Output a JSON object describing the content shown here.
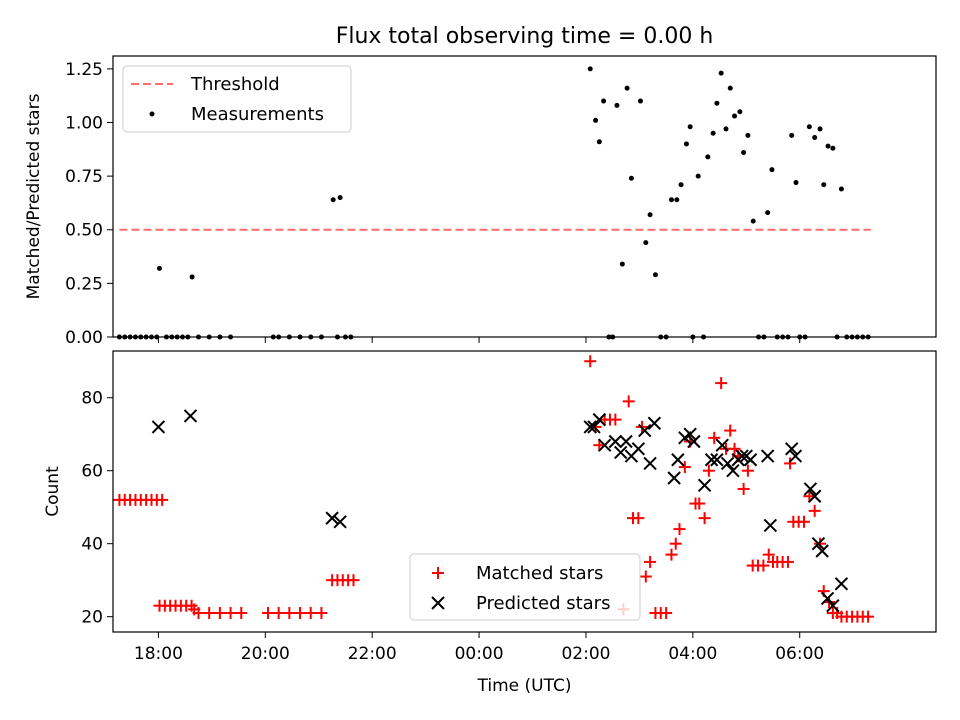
{
  "chart_data": [
    {
      "type": "scatter",
      "title": "Flux total observing time = 0.00 h",
      "xlabel": "",
      "ylabel": "Matched/Predicted stars",
      "xlim": [
        -6.85,
        8.55
      ],
      "ylim": [
        0,
        1.31
      ],
      "yticks": [
        0,
        0.25,
        0.5,
        0.75,
        1.0,
        1.25
      ],
      "ytick_labels": [
        "0.00",
        "0.25",
        "0.50",
        "0.75",
        "1.00",
        "1.25"
      ],
      "grid": false,
      "legend_position": "upper left",
      "legend": [
        "Threshold",
        "Measurements"
      ],
      "threshold": {
        "name": "Threshold",
        "y": 0.5,
        "x_start": -6.73,
        "x_end": 7.33,
        "color": "#ff6f6f",
        "style": "dashed"
      },
      "series": [
        {
          "name": "Measurements",
          "color": "#000000",
          "marker": "dot",
          "points": [
            [
              -6.73,
              0
            ],
            [
              -6.63,
              0
            ],
            [
              -6.53,
              0
            ],
            [
              -6.43,
              0
            ],
            [
              -6.33,
              0
            ],
            [
              -6.23,
              0
            ],
            [
              -6.13,
              0
            ],
            [
              -6.03,
              0
            ],
            [
              -5.98,
              0.32
            ],
            [
              -5.85,
              0
            ],
            [
              -5.75,
              0
            ],
            [
              -5.65,
              0
            ],
            [
              -5.55,
              0
            ],
            [
              -5.45,
              0
            ],
            [
              -5.37,
              0.28
            ],
            [
              -5.25,
              0
            ],
            [
              -5.05,
              0
            ],
            [
              -4.85,
              0
            ],
            [
              -4.65,
              0
            ],
            [
              -3.85,
              0
            ],
            [
              -3.75,
              0
            ],
            [
              -3.55,
              0
            ],
            [
              -3.35,
              0
            ],
            [
              -3.15,
              0
            ],
            [
              -2.95,
              0
            ],
            [
              -2.73,
              0.64
            ],
            [
              -2.65,
              0
            ],
            [
              -2.6,
              0.65
            ],
            [
              -2.5,
              0
            ],
            [
              -2.4,
              0
            ],
            [
              2.08,
              1.25
            ],
            [
              2.18,
              1.01
            ],
            [
              2.25,
              0.91
            ],
            [
              2.33,
              1.1
            ],
            [
              2.43,
              0
            ],
            [
              2.5,
              0
            ],
            [
              2.58,
              1.08
            ],
            [
              2.68,
              0.34
            ],
            [
              2.77,
              1.16
            ],
            [
              2.85,
              0.74
            ],
            [
              3.02,
              1.1
            ],
            [
              3.12,
              0.44
            ],
            [
              3.2,
              0.57
            ],
            [
              3.3,
              0.29
            ],
            [
              3.4,
              0
            ],
            [
              3.5,
              0
            ],
            [
              3.6,
              0.64
            ],
            [
              3.7,
              0.64
            ],
            [
              3.78,
              0.71
            ],
            [
              3.88,
              0.9
            ],
            [
              3.95,
              0.98
            ],
            [
              4.0,
              0
            ],
            [
              4.1,
              0.75
            ],
            [
              4.2,
              0
            ],
            [
              4.28,
              0.84
            ],
            [
              4.38,
              0.95
            ],
            [
              4.45,
              1.09
            ],
            [
              4.53,
              1.23
            ],
            [
              4.62,
              0.97
            ],
            [
              4.7,
              1.16
            ],
            [
              4.78,
              1.03
            ],
            [
              4.88,
              1.05
            ],
            [
              4.95,
              0.86
            ],
            [
              5.03,
              0.94
            ],
            [
              5.13,
              0.54
            ],
            [
              5.23,
              0
            ],
            [
              5.33,
              0
            ],
            [
              5.4,
              0.58
            ],
            [
              5.48,
              0.78
            ],
            [
              5.58,
              0
            ],
            [
              5.68,
              0
            ],
            [
              5.78,
              0
            ],
            [
              5.85,
              0.94
            ],
            [
              5.93,
              0.72
            ],
            [
              6.0,
              0
            ],
            [
              6.1,
              0
            ],
            [
              6.18,
              0.98
            ],
            [
              6.28,
              0.93
            ],
            [
              6.38,
              0.97
            ],
            [
              6.45,
              0.71
            ],
            [
              6.53,
              0.89
            ],
            [
              6.62,
              0.88
            ],
            [
              6.7,
              0
            ],
            [
              6.78,
              0.69
            ],
            [
              6.88,
              0
            ],
            [
              6.98,
              0
            ],
            [
              7.08,
              0
            ],
            [
              7.18,
              0
            ],
            [
              7.28,
              0
            ]
          ]
        }
      ]
    },
    {
      "type": "scatter",
      "title": "",
      "xlabel": "Time (UTC)",
      "ylabel": "Count",
      "xlim": [
        -6.85,
        8.55
      ],
      "ylim": [
        15.8,
        92.8
      ],
      "yticks": [
        20,
        40,
        60,
        80
      ],
      "ytick_labels": [
        "20",
        "40",
        "60",
        "80"
      ],
      "xticks": [
        -6,
        -4,
        -2,
        0,
        2,
        4,
        6
      ],
      "xtick_labels": [
        "18:00",
        "20:00",
        "22:00",
        "00:00",
        "02:00",
        "04:00",
        "06:00"
      ],
      "grid": false,
      "legend_position": "lower center",
      "legend": [
        "Matched stars",
        "Predicted stars"
      ],
      "series": [
        {
          "name": "Matched stars",
          "color": "#ff0000",
          "marker": "plus",
          "points": [
            [
              -6.73,
              52
            ],
            [
              -6.63,
              52
            ],
            [
              -6.53,
              52
            ],
            [
              -6.43,
              52
            ],
            [
              -6.33,
              52
            ],
            [
              -6.23,
              52
            ],
            [
              -6.13,
              52
            ],
            [
              -6.03,
              52
            ],
            [
              -5.93,
              52
            ],
            [
              -5.98,
              23
            ],
            [
              -5.88,
              23
            ],
            [
              -5.78,
              23
            ],
            [
              -5.68,
              23
            ],
            [
              -5.58,
              23
            ],
            [
              -5.48,
              23
            ],
            [
              -5.38,
              23
            ],
            [
              -5.33,
              22
            ],
            [
              -5.25,
              21
            ],
            [
              -5.05,
              21
            ],
            [
              -4.85,
              21
            ],
            [
              -4.65,
              21
            ],
            [
              -4.45,
              21
            ],
            [
              -3.95,
              21
            ],
            [
              -3.75,
              21
            ],
            [
              -3.55,
              21
            ],
            [
              -3.35,
              21
            ],
            [
              -3.15,
              21
            ],
            [
              -2.95,
              21
            ],
            [
              -2.75,
              30
            ],
            [
              -2.65,
              30
            ],
            [
              -2.55,
              30
            ],
            [
              -2.45,
              30
            ],
            [
              -2.35,
              30
            ],
            [
              2.08,
              90
            ],
            [
              2.18,
              72
            ],
            [
              2.25,
              67
            ],
            [
              2.35,
              74
            ],
            [
              2.45,
              74
            ],
            [
              2.55,
              74
            ],
            [
              2.7,
              22
            ],
            [
              2.8,
              79
            ],
            [
              2.88,
              47
            ],
            [
              2.98,
              47
            ],
            [
              3.05,
              72
            ],
            [
              3.12,
              31
            ],
            [
              3.2,
              35
            ],
            [
              3.3,
              21
            ],
            [
              3.4,
              21
            ],
            [
              3.5,
              21
            ],
            [
              3.6,
              37
            ],
            [
              3.68,
              40
            ],
            [
              3.75,
              44
            ],
            [
              3.85,
              61
            ],
            [
              3.95,
              68
            ],
            [
              4.05,
              51
            ],
            [
              4.12,
              51
            ],
            [
              4.22,
              47
            ],
            [
              4.3,
              60
            ],
            [
              4.4,
              69
            ],
            [
              4.53,
              84
            ],
            [
              4.62,
              66
            ],
            [
              4.7,
              71
            ],
            [
              4.78,
              66
            ],
            [
              4.85,
              64
            ],
            [
              4.95,
              55
            ],
            [
              5.03,
              60
            ],
            [
              5.12,
              34
            ],
            [
              5.22,
              34
            ],
            [
              5.32,
              34
            ],
            [
              5.42,
              37
            ],
            [
              5.5,
              35
            ],
            [
              5.58,
              35
            ],
            [
              5.68,
              35
            ],
            [
              5.78,
              35
            ],
            [
              5.82,
              62
            ],
            [
              5.88,
              46
            ],
            [
              5.98,
              46
            ],
            [
              6.08,
              46
            ],
            [
              6.18,
              53
            ],
            [
              6.28,
              49
            ],
            [
              6.38,
              40
            ],
            [
              6.45,
              27
            ],
            [
              6.55,
              24
            ],
            [
              6.62,
              21
            ],
            [
              6.7,
              21
            ],
            [
              6.78,
              20
            ],
            [
              6.88,
              20
            ],
            [
              6.98,
              20
            ],
            [
              7.08,
              20
            ],
            [
              7.18,
              20
            ],
            [
              7.28,
              20
            ]
          ]
        },
        {
          "name": "Predicted stars",
          "color": "#000000",
          "marker": "x",
          "points": [
            [
              -6.0,
              72
            ],
            [
              -5.4,
              75
            ],
            [
              -2.75,
              47
            ],
            [
              -2.6,
              46
            ],
            [
              2.08,
              72
            ],
            [
              2.15,
              72
            ],
            [
              2.25,
              74
            ],
            [
              2.35,
              67
            ],
            [
              2.55,
              68
            ],
            [
              2.65,
              65
            ],
            [
              2.75,
              68
            ],
            [
              2.85,
              64
            ],
            [
              2.98,
              66
            ],
            [
              3.1,
              71
            ],
            [
              3.2,
              62
            ],
            [
              3.28,
              73
            ],
            [
              3.65,
              58
            ],
            [
              3.72,
              63
            ],
            [
              3.85,
              69
            ],
            [
              3.95,
              70
            ],
            [
              4.02,
              68
            ],
            [
              4.22,
              56
            ],
            [
              4.35,
              63
            ],
            [
              4.45,
              63
            ],
            [
              4.55,
              67
            ],
            [
              4.65,
              62
            ],
            [
              4.75,
              60
            ],
            [
              4.85,
              63
            ],
            [
              4.92,
              64
            ],
            [
              5.0,
              64
            ],
            [
              5.08,
              63
            ],
            [
              5.4,
              64
            ],
            [
              5.45,
              45
            ],
            [
              5.85,
              66
            ],
            [
              5.92,
              64
            ],
            [
              6.2,
              55
            ],
            [
              6.28,
              53
            ],
            [
              6.35,
              40
            ],
            [
              6.42,
              38
            ],
            [
              6.52,
              25
            ],
            [
              6.62,
              23
            ],
            [
              6.78,
              29
            ]
          ]
        }
      ]
    }
  ]
}
